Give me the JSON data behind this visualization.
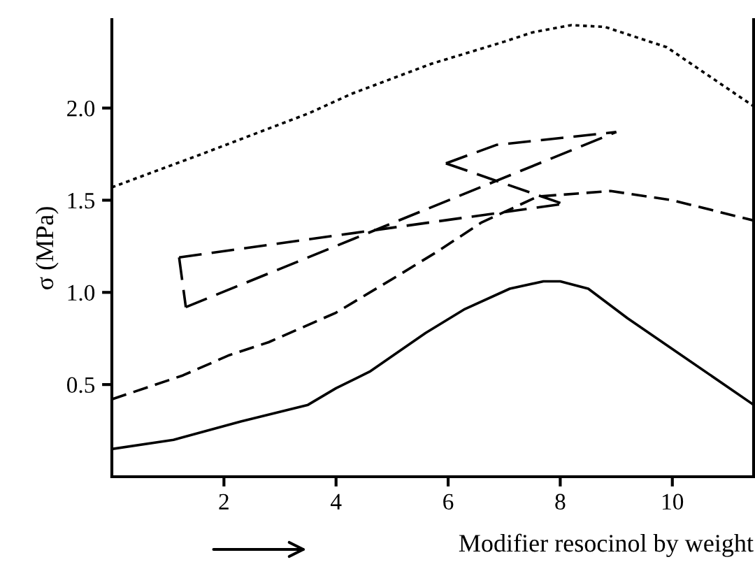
{
  "chart_data": {
    "type": "line",
    "xlabel": "Modifier resocinol by weight",
    "ylabel": "σ (MPa)",
    "xlim": [
      0,
      11.45
    ],
    "ylim": [
      0,
      2.48
    ],
    "xticks": [
      2,
      4,
      6,
      8,
      10
    ],
    "yticks": [
      0.5,
      {
        "value": 1,
        "label": "1.0"
      },
      1.5,
      {
        "value": 2,
        "label": "2.0"
      }
    ],
    "grid": false,
    "marker": "none",
    "series": [
      {
        "color": "#000000",
        "line_style": "solid",
        "x": [
          0,
          1.1,
          2.3,
          3.5,
          4.0,
          4.6,
          5.6,
          6.3,
          7.1,
          7.7,
          8.0,
          8.5,
          9.2,
          11.45
        ],
        "values": [
          0.15,
          0.2,
          0.3,
          0.39,
          0.48,
          0.57,
          0.78,
          0.91,
          1.02,
          1.06,
          1.06,
          1.02,
          0.86,
          0.39
        ]
      },
      {
        "color": "#000000",
        "line_style": "dashed",
        "x": [
          0,
          1.27,
          2.1,
          2.8,
          4.0,
          5.1,
          5.8,
          6.6,
          7.6,
          8.9,
          10.0,
          11.45
        ],
        "values": [
          0.42,
          0.55,
          0.66,
          0.73,
          0.89,
          1.09,
          1.22,
          1.38,
          1.52,
          1.55,
          1.5,
          1.39
        ]
      },
      {
        "color": "#000000",
        "line_style": "dotted",
        "x": [
          0,
          1.6,
          3.5,
          4.3,
          5.7,
          7.0,
          7.5,
          8.2,
          8.8,
          9.9,
          11.45
        ],
        "values": [
          1.57,
          1.75,
          1.97,
          2.08,
          2.24,
          2.36,
          2.41,
          2.45,
          2.44,
          2.33,
          2.01
        ]
      },
      {
        "color": "#000000",
        "line_style": "dashed",
        "x": [
          1.2,
          8.05
        ],
        "values": [
          1.19,
          1.48
        ]
      },
      {
        "color": "#000000",
        "line_style": "dashed",
        "x": [
          5.96,
          8.05
        ],
        "values": [
          1.7,
          1.48
        ]
      },
      {
        "color": "#000000",
        "line_style": "dashed",
        "x": [
          5.96,
          6.86,
          9.0
        ],
        "values": [
          1.7,
          1.8,
          1.87
        ]
      },
      {
        "color": "#000000",
        "line_style": "dashed",
        "x": [
          1.32,
          9.0
        ],
        "values": [
          0.92,
          1.87
        ]
      },
      {
        "color": "#000000",
        "line_style": "dashed",
        "x": [
          1.2,
          1.32
        ],
        "values": [
          1.19,
          0.92
        ]
      }
    ]
  }
}
